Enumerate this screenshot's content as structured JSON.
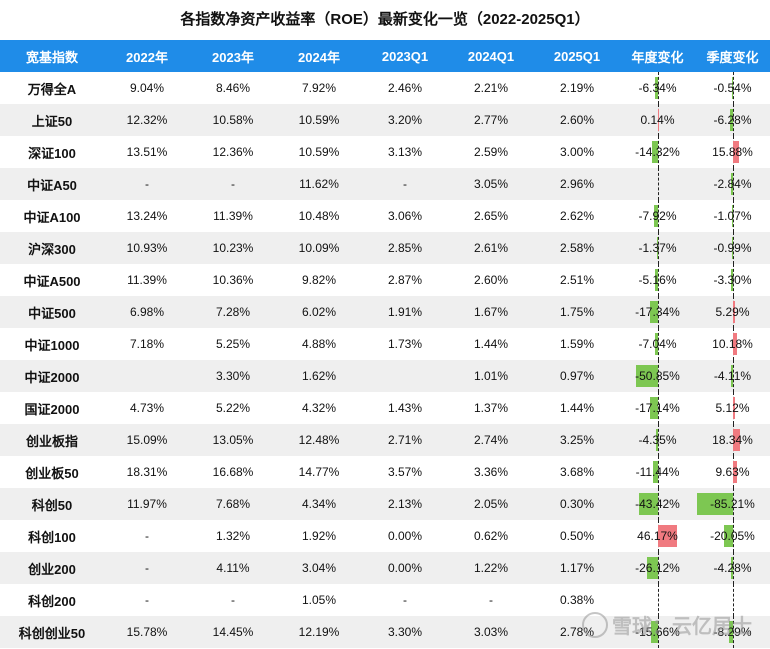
{
  "title": "各指数净资产收益率（ROE）最新变化一览（2022-2025Q1）",
  "headers": [
    "宽基指数",
    "2022年",
    "2023年",
    "2024年",
    "2023Q1",
    "2024Q1",
    "2025Q1",
    "年度变化",
    "季度变化"
  ],
  "colors": {
    "header_bg": "#1f8ce8",
    "neg_bar": "#7dc752",
    "pos_bar": "#f07a80",
    "stripe": "#efefef"
  },
  "rows": [
    {
      "name": "万得全A",
      "y2022": "9.04%",
      "y2023": "8.46%",
      "y2024": "7.92%",
      "q2023": "2.46%",
      "q2024": "2.21%",
      "q2025": "2.19%",
      "annual": "-6.34%",
      "annual_v": -6.34,
      "quarter": "-0.54%",
      "quarter_v": -0.54
    },
    {
      "name": "上证50",
      "y2022": "12.32%",
      "y2023": "10.58%",
      "y2024": "10.59%",
      "q2023": "3.20%",
      "q2024": "2.77%",
      "q2025": "2.60%",
      "annual": "0.14%",
      "annual_v": 0.14,
      "quarter": "-6.28%",
      "quarter_v": -6.28
    },
    {
      "name": "深证100",
      "y2022": "13.51%",
      "y2023": "12.36%",
      "y2024": "10.59%",
      "q2023": "3.13%",
      "q2024": "2.59%",
      "q2025": "3.00%",
      "annual": "-14.32%",
      "annual_v": -14.32,
      "quarter": "15.88%",
      "quarter_v": 15.88
    },
    {
      "name": "中证A50",
      "y2022": "-",
      "y2023": "-",
      "y2024": "11.62%",
      "q2023": "-",
      "q2024": "3.05%",
      "q2025": "2.96%",
      "annual": "",
      "annual_v": 0,
      "quarter": "-2.84%",
      "quarter_v": -2.84
    },
    {
      "name": "中证A100",
      "y2022": "13.24%",
      "y2023": "11.39%",
      "y2024": "10.48%",
      "q2023": "3.06%",
      "q2024": "2.65%",
      "q2025": "2.62%",
      "annual": "-7.92%",
      "annual_v": -7.92,
      "quarter": "-1.07%",
      "quarter_v": -1.07
    },
    {
      "name": "沪深300",
      "y2022": "10.93%",
      "y2023": "10.23%",
      "y2024": "10.09%",
      "q2023": "2.85%",
      "q2024": "2.61%",
      "q2025": "2.58%",
      "annual": "-1.37%",
      "annual_v": -1.37,
      "quarter": "-0.99%",
      "quarter_v": -0.99
    },
    {
      "name": "中证A500",
      "y2022": "11.39%",
      "y2023": "10.36%",
      "y2024": "9.82%",
      "q2023": "2.87%",
      "q2024": "2.60%",
      "q2025": "2.51%",
      "annual": "-5.16%",
      "annual_v": -5.16,
      "quarter": "-3.30%",
      "quarter_v": -3.3
    },
    {
      "name": "中证500",
      "y2022": "6.98%",
      "y2023": "7.28%",
      "y2024": "6.02%",
      "q2023": "1.91%",
      "q2024": "1.67%",
      "q2025": "1.75%",
      "annual": "-17.34%",
      "annual_v": -17.34,
      "quarter": "5.29%",
      "quarter_v": 5.29
    },
    {
      "name": "中证1000",
      "y2022": "7.18%",
      "y2023": "5.25%",
      "y2024": "4.88%",
      "q2023": "1.73%",
      "q2024": "1.44%",
      "q2025": "1.59%",
      "annual": "-7.04%",
      "annual_v": -7.04,
      "quarter": "10.18%",
      "quarter_v": 10.18
    },
    {
      "name": "中证2000",
      "y2022": "",
      "y2023": "3.30%",
      "y2024": "1.62%",
      "q2023": "",
      "q2024": "1.01%",
      "q2025": "0.97%",
      "annual": "-50.85%",
      "annual_v": -50.85,
      "quarter": "-4.11%",
      "quarter_v": -4.11
    },
    {
      "name": "国证2000",
      "y2022": "4.73%",
      "y2023": "5.22%",
      "y2024": "4.32%",
      "q2023": "1.43%",
      "q2024": "1.37%",
      "q2025": "1.44%",
      "annual": "-17.14%",
      "annual_v": -17.14,
      "quarter": "5.12%",
      "quarter_v": 5.12
    },
    {
      "name": "创业板指",
      "y2022": "15.09%",
      "y2023": "13.05%",
      "y2024": "12.48%",
      "q2023": "2.71%",
      "q2024": "2.74%",
      "q2025": "3.25%",
      "annual": "-4.35%",
      "annual_v": -4.35,
      "quarter": "18.34%",
      "quarter_v": 18.34
    },
    {
      "name": "创业板50",
      "y2022": "18.31%",
      "y2023": "16.68%",
      "y2024": "14.77%",
      "q2023": "3.57%",
      "q2024": "3.36%",
      "q2025": "3.68%",
      "annual": "-11.44%",
      "annual_v": -11.44,
      "quarter": "9.63%",
      "quarter_v": 9.63
    },
    {
      "name": "科创50",
      "y2022": "11.97%",
      "y2023": "7.68%",
      "y2024": "4.34%",
      "q2023": "2.13%",
      "q2024": "2.05%",
      "q2025": "0.30%",
      "annual": "-43.42%",
      "annual_v": -43.42,
      "quarter": "-85.21%",
      "quarter_v": -85.21
    },
    {
      "name": "科创100",
      "y2022": "-",
      "y2023": "1.32%",
      "y2024": "1.92%",
      "q2023": "0.00%",
      "q2024": "0.62%",
      "q2025": "0.50%",
      "annual": "46.17%",
      "annual_v": 46.17,
      "quarter": "-20.05%",
      "quarter_v": -20.05
    },
    {
      "name": "创业200",
      "y2022": "-",
      "y2023": "4.11%",
      "y2024": "3.04%",
      "q2023": "0.00%",
      "q2024": "1.22%",
      "q2025": "1.17%",
      "annual": "-26.12%",
      "annual_v": -26.12,
      "quarter": "-4.28%",
      "quarter_v": -4.28
    },
    {
      "name": "科创200",
      "y2022": "-",
      "y2023": "-",
      "y2024": "1.05%",
      "q2023": "-",
      "q2024": "-",
      "q2025": "0.38%",
      "annual": "",
      "annual_v": 0,
      "quarter": "",
      "quarter_v": 0
    },
    {
      "name": "科创创业50",
      "y2022": "15.78%",
      "y2023": "14.45%",
      "y2024": "12.19%",
      "q2023": "3.30%",
      "q2024": "3.03%",
      "q2025": "2.78%",
      "annual": "-15.66%",
      "annual_v": -15.66,
      "quarter": "-8.29%",
      "quarter_v": -8.29
    }
  ],
  "watermark": "雪球：云亿居士"
}
